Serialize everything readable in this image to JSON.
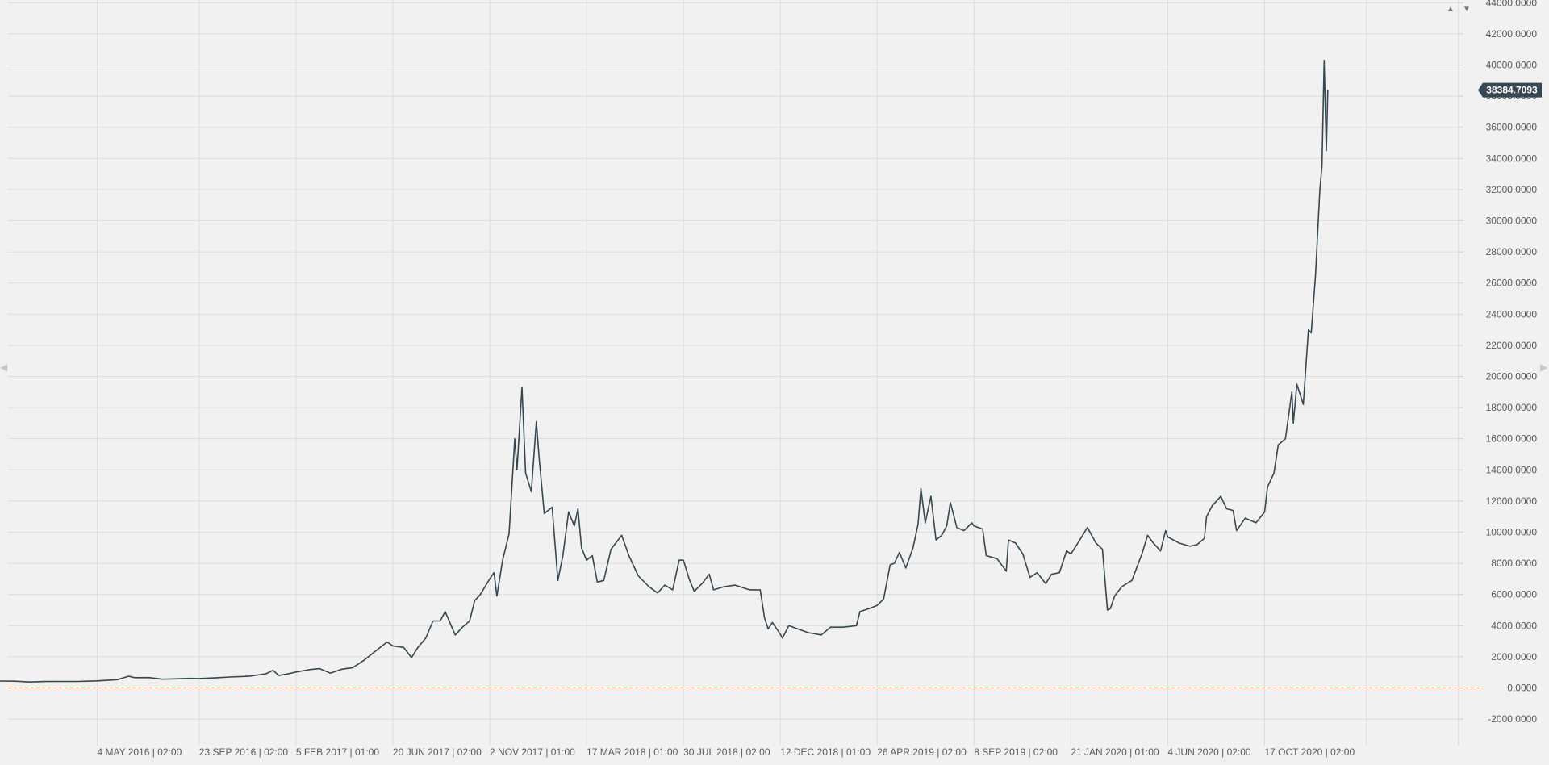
{
  "chart_data": {
    "type": "line",
    "title": "",
    "xlabel": "",
    "ylabel": "",
    "ylim": [
      -3000,
      44000
    ],
    "grid": true,
    "colors": {
      "line": "#37474f",
      "zero_line": "#f08a4b",
      "last_label_bg": "#37474f",
      "grid": "#dcdcdc",
      "background": "#f1f1f1"
    },
    "y_ticks": [
      {
        "value": -2000,
        "label": "-2000.0000"
      },
      {
        "value": 0,
        "label": "0.0000"
      },
      {
        "value": 2000,
        "label": "2000.0000"
      },
      {
        "value": 4000,
        "label": "4000.0000"
      },
      {
        "value": 6000,
        "label": "6000.0000"
      },
      {
        "value": 8000,
        "label": "8000.0000"
      },
      {
        "value": 10000,
        "label": "10000.0000"
      },
      {
        "value": 12000,
        "label": "12000.0000"
      },
      {
        "value": 14000,
        "label": "14000.0000"
      },
      {
        "value": 16000,
        "label": "16000.0000"
      },
      {
        "value": 18000,
        "label": "18000.0000"
      },
      {
        "value": 20000,
        "label": "20000.0000"
      },
      {
        "value": 22000,
        "label": "22000.0000"
      },
      {
        "value": 24000,
        "label": "24000.0000"
      },
      {
        "value": 26000,
        "label": "26000.0000"
      },
      {
        "value": 28000,
        "label": "28000.0000"
      },
      {
        "value": 30000,
        "label": "30000.0000"
      },
      {
        "value": 32000,
        "label": "32000.0000"
      },
      {
        "value": 34000,
        "label": "34000.0000"
      },
      {
        "value": 36000,
        "label": "36000.0000"
      },
      {
        "value": 38000,
        "label": "38000.0000"
      },
      {
        "value": 40000,
        "label": "40000.0000"
      },
      {
        "value": 42000,
        "label": "42000.0000"
      },
      {
        "value": 44000,
        "label": "44000.0000"
      }
    ],
    "x_ticks": [
      {
        "date": "2016-05-04",
        "label": "4 MAY 2016 | 02:00"
      },
      {
        "date": "2016-09-23",
        "label": "23 SEP 2016 | 02:00"
      },
      {
        "date": "2017-02-05",
        "label": "5 FEB 2017 | 01:00"
      },
      {
        "date": "2017-06-20",
        "label": "20 JUN 2017 | 02:00"
      },
      {
        "date": "2017-11-02",
        "label": "2 NOV 2017 | 01:00"
      },
      {
        "date": "2018-03-17",
        "label": "17 MAR 2018 | 01:00"
      },
      {
        "date": "2018-07-30",
        "label": "30 JUL 2018 | 02:00"
      },
      {
        "date": "2018-12-12",
        "label": "12 DEC 2018 | 01:00"
      },
      {
        "date": "2019-04-26",
        "label": "26 APR 2019 | 02:00"
      },
      {
        "date": "2019-09-08",
        "label": "8 SEP 2019 | 02:00"
      },
      {
        "date": "2020-01-21",
        "label": "21 JAN 2020 | 01:00"
      },
      {
        "date": "2020-06-04",
        "label": "4 JUN 2020 | 02:00"
      },
      {
        "date": "2020-10-17",
        "label": "17 OCT 2020 | 02:00"
      }
    ],
    "x_range": [
      "2015-12-20",
      "2021-07-10"
    ],
    "reference_line": {
      "value": 0,
      "style": "dashed"
    },
    "last_value": 38384.7093,
    "last_value_label": "38384.7093",
    "series": [
      {
        "points": [
          [
            "2015-12-20",
            440
          ],
          [
            "2016-01-10",
            430
          ],
          [
            "2016-02-01",
            380
          ],
          [
            "2016-02-20",
            410
          ],
          [
            "2016-03-15",
            415
          ],
          [
            "2016-04-10",
            420
          ],
          [
            "2016-05-04",
            450
          ],
          [
            "2016-06-01",
            530
          ],
          [
            "2016-06-17",
            750
          ],
          [
            "2016-06-25",
            660
          ],
          [
            "2016-07-15",
            665
          ],
          [
            "2016-08-03",
            560
          ],
          [
            "2016-08-20",
            580
          ],
          [
            "2016-09-10",
            610
          ],
          [
            "2016-09-23",
            600
          ],
          [
            "2016-10-15",
            640
          ],
          [
            "2016-11-05",
            700
          ],
          [
            "2016-12-01",
            745
          ],
          [
            "2016-12-25",
            900
          ],
          [
            "2017-01-04",
            1130
          ],
          [
            "2017-01-12",
            800
          ],
          [
            "2017-01-25",
            900
          ],
          [
            "2017-02-05",
            1020
          ],
          [
            "2017-02-25",
            1180
          ],
          [
            "2017-03-10",
            1240
          ],
          [
            "2017-03-25",
            950
          ],
          [
            "2017-04-10",
            1200
          ],
          [
            "2017-04-25",
            1300
          ],
          [
            "2017-05-10",
            1750
          ],
          [
            "2017-05-25",
            2300
          ],
          [
            "2017-06-12",
            2950
          ],
          [
            "2017-06-20",
            2700
          ],
          [
            "2017-07-05",
            2600
          ],
          [
            "2017-07-16",
            1950
          ],
          [
            "2017-07-25",
            2600
          ],
          [
            "2017-08-05",
            3200
          ],
          [
            "2017-08-15",
            4300
          ],
          [
            "2017-08-25",
            4300
          ],
          [
            "2017-09-01",
            4900
          ],
          [
            "2017-09-15",
            3400
          ],
          [
            "2017-09-25",
            3900
          ],
          [
            "2017-10-05",
            4300
          ],
          [
            "2017-10-12",
            5600
          ],
          [
            "2017-10-20",
            6000
          ],
          [
            "2017-11-02",
            7000
          ],
          [
            "2017-11-08",
            7400
          ],
          [
            "2017-11-12",
            5900
          ],
          [
            "2017-11-20",
            8200
          ],
          [
            "2017-11-29",
            9900
          ],
          [
            "2017-12-07",
            16000
          ],
          [
            "2017-12-10",
            14000
          ],
          [
            "2017-12-17",
            19300
          ],
          [
            "2017-12-22",
            13800
          ],
          [
            "2017-12-30",
            12600
          ],
          [
            "2018-01-06",
            17100
          ],
          [
            "2018-01-10",
            14700
          ],
          [
            "2018-01-17",
            11200
          ],
          [
            "2018-01-28",
            11600
          ],
          [
            "2018-02-05",
            6900
          ],
          [
            "2018-02-12",
            8500
          ],
          [
            "2018-02-20",
            11300
          ],
          [
            "2018-02-28",
            10400
          ],
          [
            "2018-03-05",
            11500
          ],
          [
            "2018-03-10",
            9000
          ],
          [
            "2018-03-17",
            8200
          ],
          [
            "2018-03-25",
            8500
          ],
          [
            "2018-04-01",
            6800
          ],
          [
            "2018-04-10",
            6900
          ],
          [
            "2018-04-20",
            8900
          ],
          [
            "2018-05-05",
            9800
          ],
          [
            "2018-05-15",
            8500
          ],
          [
            "2018-05-28",
            7200
          ],
          [
            "2018-06-12",
            6500
          ],
          [
            "2018-06-24",
            6100
          ],
          [
            "2018-07-04",
            6600
          ],
          [
            "2018-07-15",
            6300
          ],
          [
            "2018-07-24",
            8200
          ],
          [
            "2018-07-30",
            8200
          ],
          [
            "2018-08-07",
            7000
          ],
          [
            "2018-08-14",
            6200
          ],
          [
            "2018-08-25",
            6700
          ],
          [
            "2018-09-04",
            7300
          ],
          [
            "2018-09-10",
            6300
          ],
          [
            "2018-09-25",
            6500
          ],
          [
            "2018-10-10",
            6600
          ],
          [
            "2018-10-30",
            6300
          ],
          [
            "2018-11-14",
            6300
          ],
          [
            "2018-11-20",
            4500
          ],
          [
            "2018-11-25",
            3800
          ],
          [
            "2018-12-01",
            4200
          ],
          [
            "2018-12-12",
            3450
          ],
          [
            "2018-12-15",
            3200
          ],
          [
            "2018-12-24",
            4000
          ],
          [
            "2019-01-05",
            3800
          ],
          [
            "2019-01-20",
            3550
          ],
          [
            "2019-02-07",
            3400
          ],
          [
            "2019-02-20",
            3900
          ],
          [
            "2019-03-10",
            3900
          ],
          [
            "2019-03-28",
            4000
          ],
          [
            "2019-04-02",
            4900
          ],
          [
            "2019-04-15",
            5100
          ],
          [
            "2019-04-26",
            5300
          ],
          [
            "2019-05-05",
            5700
          ],
          [
            "2019-05-14",
            7900
          ],
          [
            "2019-05-20",
            8000
          ],
          [
            "2019-05-27",
            8700
          ],
          [
            "2019-06-05",
            7700
          ],
          [
            "2019-06-15",
            9000
          ],
          [
            "2019-06-22",
            10500
          ],
          [
            "2019-06-26",
            12800
          ],
          [
            "2019-07-02",
            10600
          ],
          [
            "2019-07-10",
            12300
          ],
          [
            "2019-07-17",
            9500
          ],
          [
            "2019-07-25",
            9800
          ],
          [
            "2019-08-01",
            10400
          ],
          [
            "2019-08-06",
            11900
          ],
          [
            "2019-08-15",
            10300
          ],
          [
            "2019-08-25",
            10100
          ],
          [
            "2019-09-05",
            10600
          ],
          [
            "2019-09-08",
            10400
          ],
          [
            "2019-09-20",
            10200
          ],
          [
            "2019-09-25",
            8500
          ],
          [
            "2019-10-10",
            8300
          ],
          [
            "2019-10-23",
            7500
          ],
          [
            "2019-10-26",
            9500
          ],
          [
            "2019-11-05",
            9300
          ],
          [
            "2019-11-15",
            8600
          ],
          [
            "2019-11-25",
            7100
          ],
          [
            "2019-12-05",
            7400
          ],
          [
            "2019-12-17",
            6700
          ],
          [
            "2019-12-25",
            7300
          ],
          [
            "2020-01-05",
            7400
          ],
          [
            "2020-01-15",
            8800
          ],
          [
            "2020-01-21",
            8600
          ],
          [
            "2020-02-01",
            9400
          ],
          [
            "2020-02-13",
            10300
          ],
          [
            "2020-02-25",
            9300
          ],
          [
            "2020-03-05",
            8900
          ],
          [
            "2020-03-12",
            5000
          ],
          [
            "2020-03-16",
            5100
          ],
          [
            "2020-03-22",
            5900
          ],
          [
            "2020-04-01",
            6500
          ],
          [
            "2020-04-15",
            6900
          ],
          [
            "2020-04-29",
            8600
          ],
          [
            "2020-05-07",
            9800
          ],
          [
            "2020-05-15",
            9300
          ],
          [
            "2020-05-25",
            8800
          ],
          [
            "2020-06-01",
            10100
          ],
          [
            "2020-06-04",
            9700
          ],
          [
            "2020-06-20",
            9300
          ],
          [
            "2020-07-05",
            9100
          ],
          [
            "2020-07-15",
            9200
          ],
          [
            "2020-07-25",
            9600
          ],
          [
            "2020-07-28",
            11000
          ],
          [
            "2020-08-05",
            11700
          ],
          [
            "2020-08-17",
            12300
          ],
          [
            "2020-08-25",
            11500
          ],
          [
            "2020-09-03",
            11400
          ],
          [
            "2020-09-08",
            10100
          ],
          [
            "2020-09-20",
            10900
          ],
          [
            "2020-10-05",
            10600
          ],
          [
            "2020-10-17",
            11300
          ],
          [
            "2020-10-21",
            12900
          ],
          [
            "2020-10-30",
            13800
          ],
          [
            "2020-11-05",
            15600
          ],
          [
            "2020-11-15",
            16000
          ],
          [
            "2020-11-24",
            19000
          ],
          [
            "2020-11-26",
            17000
          ],
          [
            "2020-12-01",
            19500
          ],
          [
            "2020-12-10",
            18200
          ],
          [
            "2020-12-17",
            23000
          ],
          [
            "2020-12-21",
            22800
          ],
          [
            "2020-12-27",
            26500
          ],
          [
            "2021-01-02",
            32000
          ],
          [
            "2021-01-05",
            33500
          ],
          [
            "2021-01-08",
            40300
          ],
          [
            "2021-01-11",
            34500
          ],
          [
            "2021-01-13",
            38400
          ]
        ]
      }
    ]
  },
  "controls": {
    "up_arrow": "▲",
    "down_arrow": "▼",
    "left_handle": "◀",
    "right_handle": "▶"
  }
}
